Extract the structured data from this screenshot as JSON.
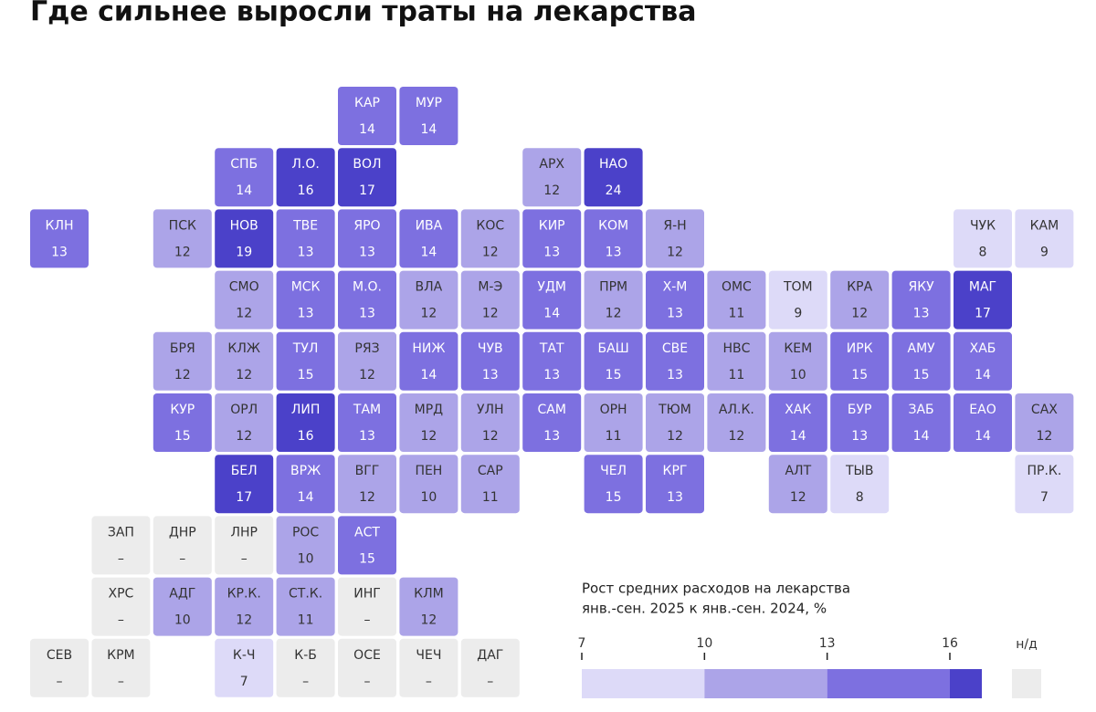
{
  "chart_data": {
    "type": "tilemap",
    "title": "Где сильнее выросли траты на лекарства",
    "missing_label": "–",
    "tiles": [
      {
        "code": "КАР",
        "value": 14
      },
      {
        "code": "МУР",
        "value": 14
      },
      {
        "code": "СПБ",
        "value": 14
      },
      {
        "code": "Л.О.",
        "value": 16
      },
      {
        "code": "ВОЛ",
        "value": 17
      },
      {
        "code": "АРХ",
        "value": 12
      },
      {
        "code": "НАО",
        "value": 24
      },
      {
        "code": "КЛН",
        "value": 13
      },
      {
        "code": "ПСК",
        "value": 12
      },
      {
        "code": "НОВ",
        "value": 19
      },
      {
        "code": "ТВЕ",
        "value": 13
      },
      {
        "code": "ЯРО",
        "value": 13
      },
      {
        "code": "ИВА",
        "value": 14
      },
      {
        "code": "КОС",
        "value": 12
      },
      {
        "code": "КИР",
        "value": 13
      },
      {
        "code": "КОМ",
        "value": 13
      },
      {
        "code": "Я-Н",
        "value": 12
      },
      {
        "code": "ЧУК",
        "value": 8
      },
      {
        "code": "КАМ",
        "value": 9
      },
      {
        "code": "СМО",
        "value": 12
      },
      {
        "code": "МСК",
        "value": 13
      },
      {
        "code": "М.О.",
        "value": 13
      },
      {
        "code": "ВЛА",
        "value": 12
      },
      {
        "code": "М-Э",
        "value": 12
      },
      {
        "code": "УДМ",
        "value": 14
      },
      {
        "code": "ПРМ",
        "value": 12
      },
      {
        "code": "Х-М",
        "value": 13
      },
      {
        "code": "ОМС",
        "value": 11
      },
      {
        "code": "ТОМ",
        "value": 9
      },
      {
        "code": "КРА",
        "value": 12
      },
      {
        "code": "ЯКУ",
        "value": 13
      },
      {
        "code": "МАГ",
        "value": 17
      },
      {
        "code": "БРЯ",
        "value": 12
      },
      {
        "code": "КЛЖ",
        "value": 12
      },
      {
        "code": "ТУЛ",
        "value": 15
      },
      {
        "code": "РЯЗ",
        "value": 12
      },
      {
        "code": "НИЖ",
        "value": 14
      },
      {
        "code": "ЧУВ",
        "value": 13
      },
      {
        "code": "ТАТ",
        "value": 13
      },
      {
        "code": "БАШ",
        "value": 15
      },
      {
        "code": "СВЕ",
        "value": 13
      },
      {
        "code": "НВС",
        "value": 11
      },
      {
        "code": "КЕМ",
        "value": 10
      },
      {
        "code": "ИРК",
        "value": 15
      },
      {
        "code": "АМУ",
        "value": 15
      },
      {
        "code": "ХАБ",
        "value": 14
      },
      {
        "code": "КУР",
        "value": 15
      },
      {
        "code": "ОРЛ",
        "value": 12
      },
      {
        "code": "ЛИП",
        "value": 16
      },
      {
        "code": "ТАМ",
        "value": 13
      },
      {
        "code": "МРД",
        "value": 12
      },
      {
        "code": "УЛН",
        "value": 12
      },
      {
        "code": "САМ",
        "value": 13
      },
      {
        "code": "ОРН",
        "value": 11
      },
      {
        "code": "ТЮМ",
        "value": 12
      },
      {
        "code": "АЛ.К.",
        "value": 12
      },
      {
        "code": "ХАК",
        "value": 14
      },
      {
        "code": "БУР",
        "value": 13
      },
      {
        "code": "ЗАБ",
        "value": 14
      },
      {
        "code": "ЕАО",
        "value": 14
      },
      {
        "code": "САХ",
        "value": 12
      },
      {
        "code": "БЕЛ",
        "value": 17
      },
      {
        "code": "ВРЖ",
        "value": 14
      },
      {
        "code": "ВГГ",
        "value": 12
      },
      {
        "code": "ПЕН",
        "value": 10
      },
      {
        "code": "САР",
        "value": 11
      },
      {
        "code": "ЧЕЛ",
        "value": 15
      },
      {
        "code": "КРГ",
        "value": 13
      },
      {
        "code": "АЛТ",
        "value": 12
      },
      {
        "code": "ТЫВ",
        "value": 8
      },
      {
        "code": "ПР.К.",
        "value": 7
      },
      {
        "code": "ЗАП",
        "value": null
      },
      {
        "code": "ДНР",
        "value": null
      },
      {
        "code": "ЛНР",
        "value": null
      },
      {
        "code": "РОС",
        "value": 10
      },
      {
        "code": "АСТ",
        "value": 15
      },
      {
        "code": "ХРС",
        "value": null
      },
      {
        "code": "АДГ",
        "value": 10
      },
      {
        "code": "КР.К.",
        "value": 12
      },
      {
        "code": "СТ.К.",
        "value": 11
      },
      {
        "code": "ИНГ",
        "value": null
      },
      {
        "code": "КЛМ",
        "value": 12
      },
      {
        "code": "СЕВ",
        "value": null
      },
      {
        "code": "КРМ",
        "value": null
      },
      {
        "code": "К-Ч",
        "value": 7
      },
      {
        "code": "К-Б",
        "value": null
      },
      {
        "code": "ОСЕ",
        "value": null
      },
      {
        "code": "ЧЕЧ",
        "value": null
      },
      {
        "code": "ДАГ",
        "value": null
      }
    ],
    "legend": {
      "title": [
        "Рост средних расходов на лекарства",
        "янв.-сен. 2025 к янв.-сен. 2024, %"
      ],
      "ticks": [
        7,
        10,
        13,
        16
      ],
      "colors": [
        "#dddaf8",
        "#aca4e8",
        "#7d70e0",
        "#4b41c9"
      ],
      "na_label": "н/д",
      "na_color": "#ececec"
    }
  }
}
